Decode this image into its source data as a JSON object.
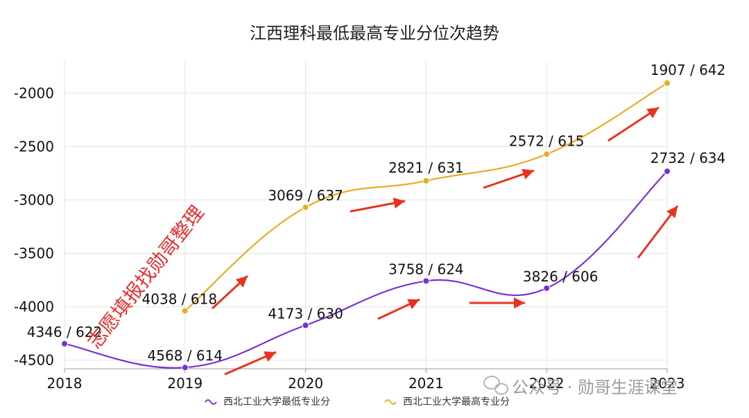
{
  "chart_data": {
    "type": "line",
    "title": "江西理科最低最高专业分位次趋势",
    "x": [
      "2018",
      "2019",
      "2020",
      "2021",
      "2022",
      "2023"
    ],
    "ylim": [
      -4580,
      -1700
    ],
    "yticks": [
      -4500,
      -4000,
      -3500,
      -3000,
      -2500,
      -2000
    ],
    "ytick_labels": [
      "-4500",
      "-4000",
      "-3500",
      "-3000",
      "-2500",
      "-2000"
    ],
    "grid": true,
    "legend": "bottom",
    "series": [
      {
        "name": "西北工业大学最低专业分",
        "color": "#7b2fd1",
        "values": [
          -4346,
          -4568,
          -4173,
          -3758,
          -3826,
          -2732
        ],
        "labels": [
          "4346 / 622",
          "4568 / 614",
          "4173 / 630",
          "3758 / 624",
          "3826 / 606",
          "2732 / 634"
        ]
      },
      {
        "name": "西北工业大学最高专业分",
        "color": "#e6ad1f",
        "values": [
          null,
          -4038,
          -3069,
          -2821,
          -2572,
          -1907
        ],
        "labels": [
          null,
          "4038 / 618",
          "3069 / 637",
          "2821 / 631",
          "2572 / 615",
          "1907 / 642"
        ]
      }
    ]
  },
  "overlay": {
    "watermark": "志愿填报找勋哥整理",
    "footer": "公众号 · 勋哥生涯课堂",
    "arrow_color": "#e8321e"
  }
}
